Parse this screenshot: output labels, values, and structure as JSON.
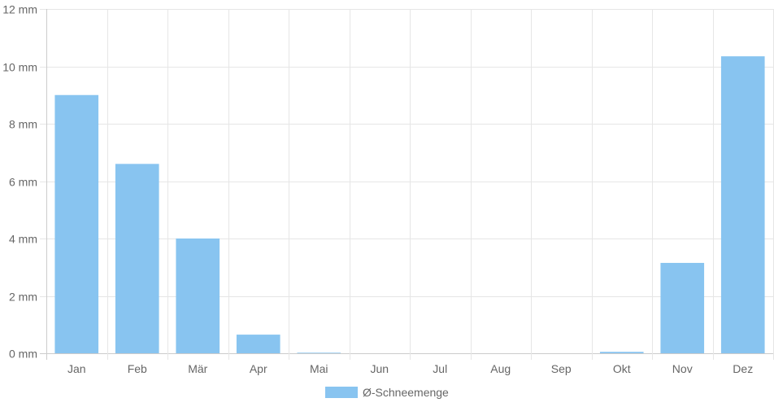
{
  "chart_data": {
    "type": "bar",
    "categories": [
      "Jan",
      "Feb",
      "Mär",
      "Apr",
      "Mai",
      "Jun",
      "Jul",
      "Aug",
      "Sep",
      "Okt",
      "Nov",
      "Dez"
    ],
    "series": [
      {
        "name": "Ø-Schneemenge",
        "values": [
          9.0,
          6.6,
          4.0,
          0.65,
          0.02,
          0,
          0,
          0,
          0,
          0.05,
          3.15,
          10.35
        ],
        "color": "#88c4f0"
      }
    ],
    "ylim": [
      0,
      12
    ],
    "yticks": [
      0,
      2,
      4,
      6,
      8,
      10,
      12
    ],
    "ytick_labels": [
      "0 mm",
      "2 mm",
      "4 mm",
      "6 mm",
      "8 mm",
      "10 mm",
      "12 mm"
    ],
    "xlabel": "",
    "ylabel": "",
    "grid": true,
    "legend": {
      "position": "bottom",
      "label": "Ø-Schneemenge"
    },
    "colors": {
      "grid": "#e6e6e6",
      "axis": "#cccccc",
      "text": "#666666"
    }
  }
}
